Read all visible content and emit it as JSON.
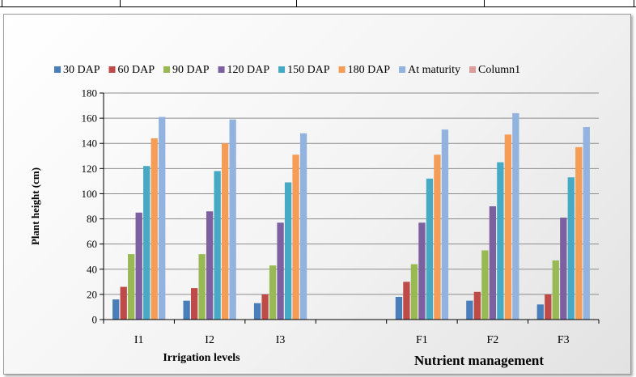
{
  "chart_data": {
    "type": "bar",
    "title": "",
    "xlabel": "",
    "ylabel": "Plant height (cm)",
    "ylim": [
      0,
      180
    ],
    "yticks": [
      0,
      20,
      40,
      60,
      80,
      100,
      120,
      140,
      160,
      180
    ],
    "grid": true,
    "legend_position": "top",
    "categories": [
      "I1",
      "I2",
      "I3",
      "",
      "F1",
      "F2",
      "F3"
    ],
    "group_labels": [
      "Irrigation levels",
      "Nutrient management"
    ],
    "series": [
      {
        "name": "30 DAP",
        "color": "#4a7ebb",
        "values": [
          16,
          15,
          13,
          null,
          18,
          15,
          12
        ]
      },
      {
        "name": "60 DAP",
        "color": "#be4b48",
        "values": [
          26,
          25,
          20,
          null,
          30,
          22,
          20
        ]
      },
      {
        "name": "90 DAP",
        "color": "#98b954",
        "values": [
          52,
          52,
          43,
          null,
          44,
          55,
          47
        ]
      },
      {
        "name": "120 DAP",
        "color": "#7d60a0",
        "values": [
          85,
          86,
          77,
          null,
          77,
          90,
          81
        ]
      },
      {
        "name": "150 DAP",
        "color": "#46aac5",
        "values": [
          122,
          118,
          109,
          null,
          112,
          125,
          113
        ]
      },
      {
        "name": "180 DAP",
        "color": "#f59d56",
        "values": [
          144,
          140,
          131,
          null,
          131,
          147,
          137
        ]
      },
      {
        "name": "At maturity",
        "color": "#92b3e0",
        "values": [
          161,
          159,
          148,
          null,
          151,
          164,
          153
        ]
      },
      {
        "name": "Column1",
        "color": "#dd9c9c",
        "values": [
          null,
          null,
          null,
          null,
          null,
          null,
          null
        ]
      }
    ]
  }
}
